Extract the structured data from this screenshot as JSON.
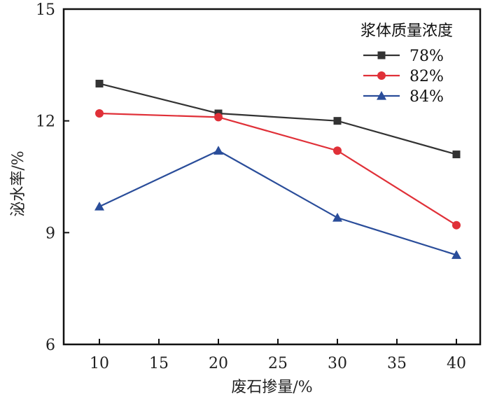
{
  "chart_data": {
    "type": "line",
    "title": "",
    "xlabel": "废石掺量/%",
    "ylabel": "泌水率/%",
    "xlim": [
      7,
      42
    ],
    "ylim": [
      6,
      15
    ],
    "xticks": [
      10,
      15,
      20,
      25,
      30,
      35,
      40
    ],
    "xtick_labels": [
      "10",
      "15",
      "20",
      "25",
      "30",
      "35",
      "40"
    ],
    "yticks": [
      6,
      9,
      12,
      15
    ],
    "ytick_labels": [
      "6",
      "9",
      "12",
      "15"
    ],
    "grid": false,
    "legend": {
      "title": "浆体质量浓度",
      "placement": "top-right"
    },
    "x": [
      10,
      20,
      30,
      40
    ],
    "series": [
      {
        "name": "78%",
        "values": [
          13.0,
          12.2,
          12.0,
          11.1
        ],
        "color": "#333333",
        "marker": "square"
      },
      {
        "name": "82%",
        "values": [
          12.2,
          12.1,
          11.2,
          9.2
        ],
        "color": "#e03038",
        "marker": "circle"
      },
      {
        "name": "84%",
        "values": [
          9.7,
          11.2,
          9.4,
          8.4
        ],
        "color": "#2a4d9a",
        "marker": "triangle"
      }
    ]
  }
}
